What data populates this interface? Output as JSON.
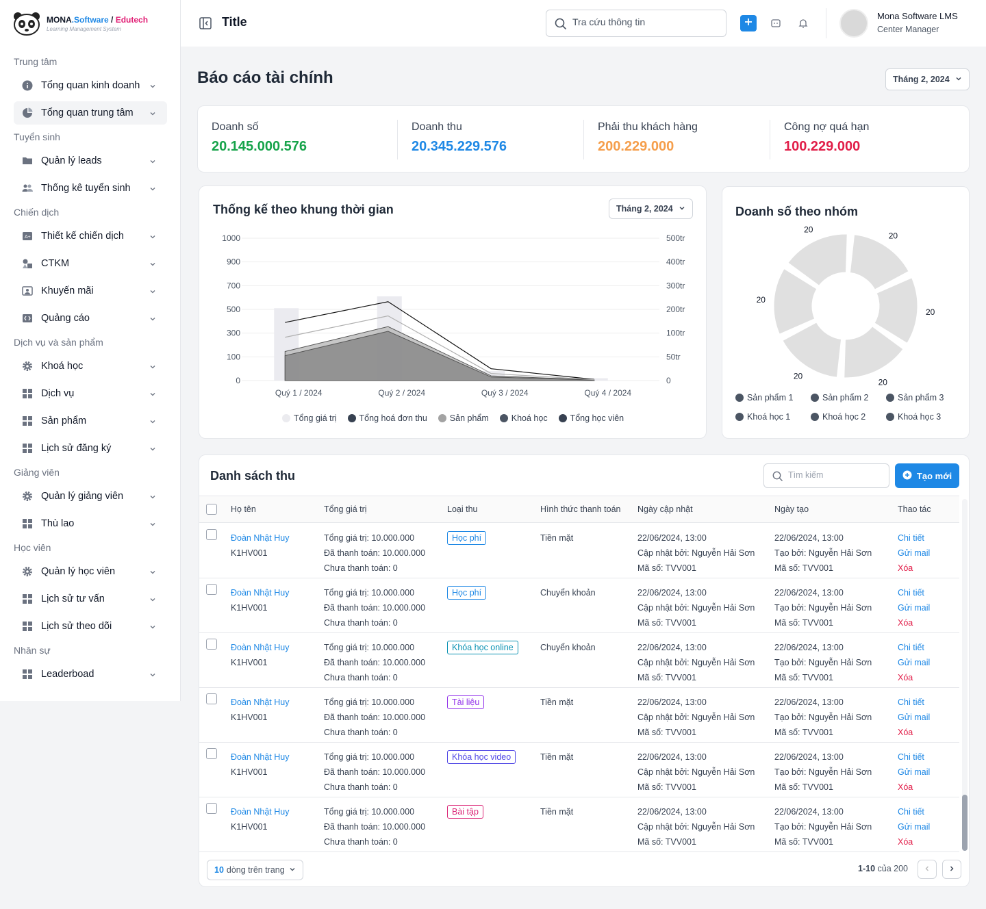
{
  "brand": {
    "name": "MONA",
    "name_sw": ".Software",
    "slash": " / ",
    "name_ed": "Edutech",
    "subtitle": "Learning Management System"
  },
  "sidebar": {
    "sections": [
      {
        "title": "Trung tâm",
        "items": [
          {
            "label": "Tổng quan kinh doanh",
            "icon": "info-icon"
          },
          {
            "label": "Tổng quan trung tâm",
            "icon": "pie-icon",
            "active": true
          }
        ]
      },
      {
        "title": "Tuyển sinh",
        "items": [
          {
            "label": "Quản lý leads",
            "icon": "folder-icon"
          },
          {
            "label": "Thống kê tuyển sinh",
            "icon": "users-icon"
          }
        ]
      },
      {
        "title": "Chiến dịch",
        "items": [
          {
            "label": "Thiết kế chiến dịch",
            "icon": "design-icon"
          },
          {
            "label": "CTKM",
            "icon": "shapes-icon"
          },
          {
            "label": "Khuyến mãi",
            "icon": "image-icon"
          },
          {
            "label": "Quảng cáo",
            "icon": "ads-icon"
          }
        ]
      },
      {
        "title": "Dịch vụ và sản phẩm",
        "items": [
          {
            "label": "Khoá học",
            "icon": "gear-icon"
          },
          {
            "label": "Dịch vụ",
            "icon": "grid-icon"
          },
          {
            "label": "Sản phẩm",
            "icon": "grid-icon"
          },
          {
            "label": "Lịch sử đăng ký",
            "icon": "grid-icon"
          }
        ]
      },
      {
        "title": "Giảng viên",
        "items": [
          {
            "label": "Quản lý giảng viên",
            "icon": "gear-icon"
          },
          {
            "label": "Thù lao",
            "icon": "grid-icon"
          }
        ]
      },
      {
        "title": "Học viên",
        "items": [
          {
            "label": "Quản lý học viên",
            "icon": "gear-icon"
          },
          {
            "label": "Lịch sử tư vấn",
            "icon": "grid-icon"
          },
          {
            "label": "Lịch sử theo dõi",
            "icon": "grid-icon"
          }
        ]
      },
      {
        "title": "Nhân sự",
        "items": [
          {
            "label": "Leaderboad",
            "icon": "grid-icon"
          }
        ]
      }
    ]
  },
  "topbar": {
    "title": "Title",
    "search_placeholder": "Tra cứu thông tin",
    "user_name": "Mona Software LMS",
    "user_role": "Center Manager"
  },
  "page": {
    "title": "Báo cáo tài chính",
    "month": "Tháng 2, 2024"
  },
  "stats": [
    {
      "label": "Doanh số",
      "value": "20.145.000.576",
      "color": "#16a34a"
    },
    {
      "label": "Doanh thu",
      "value": "20.345.229.576",
      "color": "#1e88e5"
    },
    {
      "label": "Phải thu khách hàng",
      "value": "200.229.000",
      "color": "#f59e4b"
    },
    {
      "label": "Công nợ quá hạn",
      "value": "100.229.000",
      "color": "#e11d48"
    }
  ],
  "chart_data": [
    {
      "type": "bar",
      "title": "Thống kế theo khung thời gian",
      "filter": "Tháng 2, 2024",
      "categories": [
        "Quý 1 / 2024",
        "Quý 2 / 2024",
        "Quý 3 / 2024",
        "Quý 4 / 2024"
      ],
      "y_ticks": [
        "0",
        "100",
        "300",
        "500",
        "700",
        "900",
        "1000"
      ],
      "y2_ticks": [
        "0",
        "50tr",
        "100tr",
        "200tr",
        "300tr",
        "400tr",
        "500tr"
      ],
      "series": [
        {
          "name": "Tổng giá trị",
          "kind": "bar",
          "color": "#ebebf0",
          "values": [
            510,
            610,
            40,
            10
          ]
        },
        {
          "name": "Tổng hoá đơn thu",
          "kind": "line",
          "color": "#111111",
          "values": [
            390,
            565,
            50,
            5
          ]
        },
        {
          "name": "Sản phẩm",
          "kind": "area",
          "color": "#bdbdbd",
          "values": [
            145,
            355,
            20,
            3
          ]
        },
        {
          "name": "Khoá học",
          "kind": "area",
          "color": "#8a8a8a",
          "values": [
            110,
            315,
            15,
            2
          ]
        },
        {
          "name": "Tổng học viên",
          "kind": "line",
          "color": "#b0b0b0",
          "values": [
            265,
            445,
            30,
            4
          ]
        }
      ],
      "legend": [
        {
          "name": "Tổng giá trị",
          "color": "#ebebef"
        },
        {
          "name": "Tổng hoá đơn thu",
          "color": "#374151"
        },
        {
          "name": "Sản phẩm",
          "color": "#a3a3a3"
        },
        {
          "name": "Khoá học",
          "color": "#4b5563"
        },
        {
          "name": "Tổng học viên",
          "color": "#374151"
        }
      ]
    },
    {
      "type": "pie",
      "title": "Doanh số theo nhóm",
      "slices": [
        {
          "name": "Sản phẩm 1",
          "value": 20,
          "label": "20"
        },
        {
          "name": "Sản phẩm 2",
          "value": 20,
          "label": "20"
        },
        {
          "name": "Sản phẩm 3",
          "value": 20,
          "label": "20"
        },
        {
          "name": "Khoá học 1",
          "value": 20,
          "label": "20"
        },
        {
          "name": "Khoá học 2",
          "value": 20,
          "label": "20"
        },
        {
          "name": "Khoá học 3",
          "value": 20,
          "label": "20"
        }
      ],
      "slice_color": "#e0e0e0",
      "legend_color": "#4b5563"
    }
  ],
  "table": {
    "title": "Danh sách thu",
    "search_placeholder": "Tìm kiếm",
    "create_label": "Tạo mới",
    "headers": [
      "Họ tên",
      "Tổng giá trị",
      "Loại thu",
      "Hình thức thanh toán",
      "Ngày cập nhật",
      "Ngày tạo",
      "Thao tác"
    ],
    "rows": [
      {
        "name": "Đoàn Nhật Huy",
        "code": "K1HV001",
        "total": "Tổng giá trị: 10.000.000",
        "paid": "Đã thanh toán: 10.000.000",
        "unpaid": "Chưa thanh toán: 0",
        "type": "Học phí",
        "type_color": "#1e88e5",
        "method": "Tiền mặt",
        "updated": "22/06/2024, 13:00",
        "updated_by": "Cập nhật bởi: Nguyễn Hải Sơn",
        "updated_code": "Mã số: TVV001",
        "created": "22/06/2024, 13:00",
        "created_by": "Tạo bởi: Nguyễn Hải Sơn",
        "created_code": "Mã số: TVV001"
      },
      {
        "name": "Đoàn Nhật Huy",
        "code": "K1HV001",
        "total": "Tổng giá trị: 10.000.000",
        "paid": "Đã thanh toán: 10.000.000",
        "unpaid": "Chưa thanh toán: 0",
        "type": "Học phí",
        "type_color": "#1e88e5",
        "method": "Chuyển khoản",
        "updated": "22/06/2024, 13:00",
        "updated_by": "Cập nhật bởi: Nguyễn Hải Sơn",
        "updated_code": "Mã số: TVV001",
        "created": "22/06/2024, 13:00",
        "created_by": "Tạo bởi: Nguyễn Hải Sơn",
        "created_code": "Mã số: TVV001"
      },
      {
        "name": "Đoàn Nhật Huy",
        "code": "K1HV001",
        "total": "Tổng giá trị: 10.000.000",
        "paid": "Đã thanh toán: 10.000.000",
        "unpaid": "Chưa thanh toán: 0",
        "type": "Khóa học online",
        "type_color": "#0891b2",
        "method": "Chuyển khoản",
        "updated": "22/06/2024, 13:00",
        "updated_by": "Cập nhật bởi: Nguyễn Hải Sơn",
        "updated_code": "Mã số: TVV001",
        "created": "22/06/2024, 13:00",
        "created_by": "Tạo bởi: Nguyễn Hải Sơn",
        "created_code": "Mã số: TVV001"
      },
      {
        "name": "Đoàn Nhật Huy",
        "code": "K1HV001",
        "total": "Tổng giá trị: 10.000.000",
        "paid": "Đã thanh toán: 10.000.000",
        "unpaid": "Chưa thanh toán: 0",
        "type": "Tài liệu",
        "type_color": "#9333ea",
        "method": "Tiền mặt",
        "updated": "22/06/2024, 13:00",
        "updated_by": "Cập nhật bởi: Nguyễn Hải Sơn",
        "updated_code": "Mã số: TVV001",
        "created": "22/06/2024, 13:00",
        "created_by": "Tạo bởi: Nguyễn Hải Sơn",
        "created_code": "Mã số: TVV001"
      },
      {
        "name": "Đoàn Nhật Huy",
        "code": "K1HV001",
        "total": "Tổng giá trị: 10.000.000",
        "paid": "Đã thanh toán: 10.000.000",
        "unpaid": "Chưa thanh toán: 0",
        "type": "Khóa học video",
        "type_color": "#4f46e5",
        "method": "Tiền mặt",
        "updated": "22/06/2024, 13:00",
        "updated_by": "Cập nhật bởi: Nguyễn Hải Sơn",
        "updated_code": "Mã số: TVV001",
        "created": "22/06/2024, 13:00",
        "created_by": "Tạo bởi: Nguyễn Hải Sơn",
        "created_code": "Mã số: TVV001"
      },
      {
        "name": "Đoàn Nhật Huy",
        "code": "K1HV001",
        "total": "Tổng giá trị: 10.000.000",
        "paid": "Đã thanh toán: 10.000.000",
        "unpaid": "Chưa thanh toán: 0",
        "type": "Bài tập",
        "type_color": "#db2777",
        "method": "Tiền mặt",
        "updated": "22/06/2024, 13:00",
        "updated_by": "Cập nhật bởi: Nguyễn Hải Sơn",
        "updated_code": "Mã số: TVV001",
        "created": "22/06/2024, 13:00",
        "created_by": "Tạo bởi: Nguyễn Hải Sơn",
        "created_code": "Mã số: TVV001"
      }
    ],
    "actions": {
      "detail": "Chi tiết",
      "mail": "Gửi mail",
      "delete": "Xóa"
    },
    "page_size": "10",
    "page_size_suffix": "dòng trên trang",
    "range": "1-10",
    "of_total": "của 200"
  },
  "colors": {
    "accent": "#1e88e5"
  }
}
